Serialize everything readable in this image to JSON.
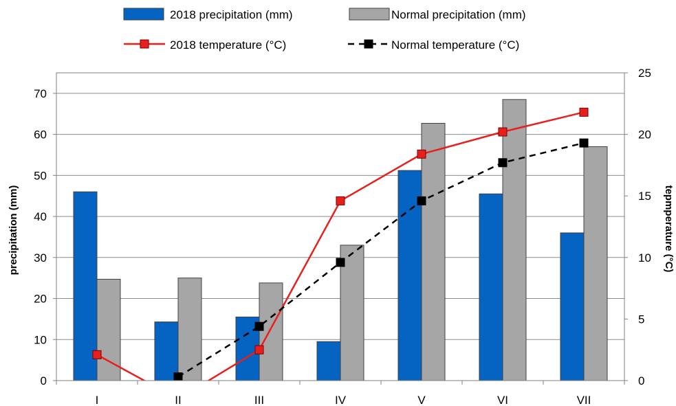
{
  "chart_data": {
    "type": "bar+line",
    "title": "",
    "categories": [
      "I",
      "II",
      "III",
      "IV",
      "V",
      "VI",
      "VII"
    ],
    "bar_series": [
      {
        "name": "2018 precipitation (mm)",
        "color": "#0563C1",
        "values": [
          46,
          14.3,
          15.5,
          9.5,
          51.2,
          45.5,
          36
        ]
      },
      {
        "name": "Normal precipitation (mm)",
        "color": "#A6A6A6",
        "values": [
          24.7,
          25,
          23.8,
          33,
          62.7,
          68.5,
          57
        ]
      }
    ],
    "line_series": [
      {
        "name": "2018 temperature (°C)",
        "color": "#E8201D",
        "dashed": false,
        "marker_fill": "#E8201D",
        "values": [
          2.1,
          -1.5,
          2.5,
          14.6,
          18.4,
          20.2,
          21.8
        ]
      },
      {
        "name": "Normal temperature (°C)",
        "color": "#000000",
        "dashed": true,
        "marker_fill": "#000000",
        "values": [
          null,
          0.3,
          4.4,
          9.6,
          14.6,
          17.7,
          19.3
        ]
      }
    ],
    "left_axis": {
      "label": "precipitation (mm)",
      "ylim": [
        0,
        75
      ],
      "ticks": [
        "0",
        "10",
        "20",
        "30",
        "40",
        "50",
        "60",
        "70"
      ]
    },
    "right_axis": {
      "label": "tepmperature (°C)",
      "ylim": [
        0,
        25
      ],
      "ticks": [
        "0",
        "5",
        "10",
        "15",
        "20",
        "25"
      ]
    },
    "grid": true,
    "legend_position": "top"
  }
}
